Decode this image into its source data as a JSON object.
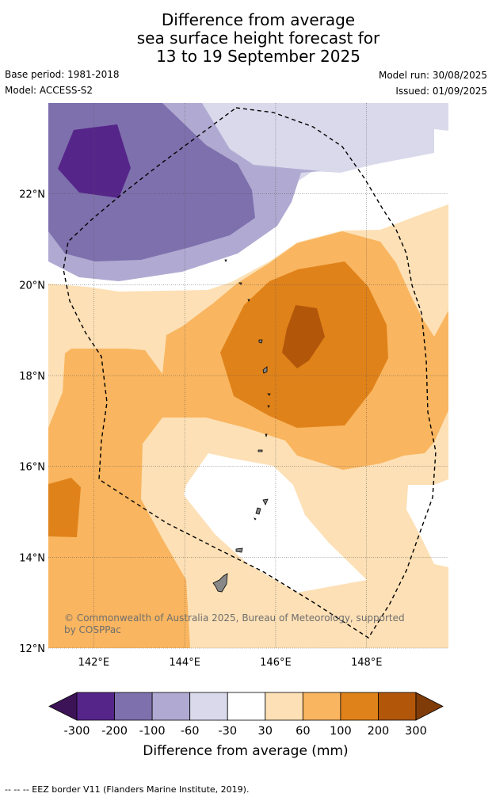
{
  "title": {
    "line1": "Difference from average",
    "line2": "sea surface height forecast for",
    "line3": "13 to 19 September 2025"
  },
  "meta": {
    "base_period": "Base period: 1981-2018",
    "model": "Model: ACCESS-S2",
    "model_run": "Model run: 30/08/2025",
    "issued": "Issued: 01/09/2025"
  },
  "map": {
    "lon_range": [
      141.0,
      149.8
    ],
    "lat_range": [
      12.0,
      24.0
    ],
    "x_ticks": [
      {
        "value": 142,
        "label": "142°E"
      },
      {
        "value": 144,
        "label": "144°E"
      },
      {
        "value": 146,
        "label": "146°E"
      },
      {
        "value": 148,
        "label": "148°E"
      }
    ],
    "y_ticks": [
      {
        "value": 12,
        "label": "12°N"
      },
      {
        "value": 14,
        "label": "14°N"
      },
      {
        "value": 16,
        "label": "16°N"
      },
      {
        "value": 18,
        "label": "18°N"
      },
      {
        "value": 20,
        "label": "20°N"
      },
      {
        "value": 22,
        "label": "22°N"
      }
    ],
    "gridlines": true,
    "copyright_line1": "© Commonwealth of Australia 2025, Bureau of Meteorology, supported",
    "copyright_line2": "by COSPPac"
  },
  "colorbar": {
    "title": "Difference from average (mm)",
    "labels": [
      "-300",
      "-200",
      "-100",
      "-60",
      "-30",
      "30",
      "60",
      "100",
      "200",
      "300"
    ],
    "colors": [
      "#3d1357",
      "#56258a",
      "#7e70ad",
      "#b0aad2",
      "#d9d9eb",
      "#ffffff",
      "#fde0b5",
      "#f9b55f",
      "#e0821a",
      "#b2570a",
      "#7f3b08"
    ]
  },
  "footer": "-- -- -- EEZ border V11 (Flanders Marine Institute, 2019)."
}
